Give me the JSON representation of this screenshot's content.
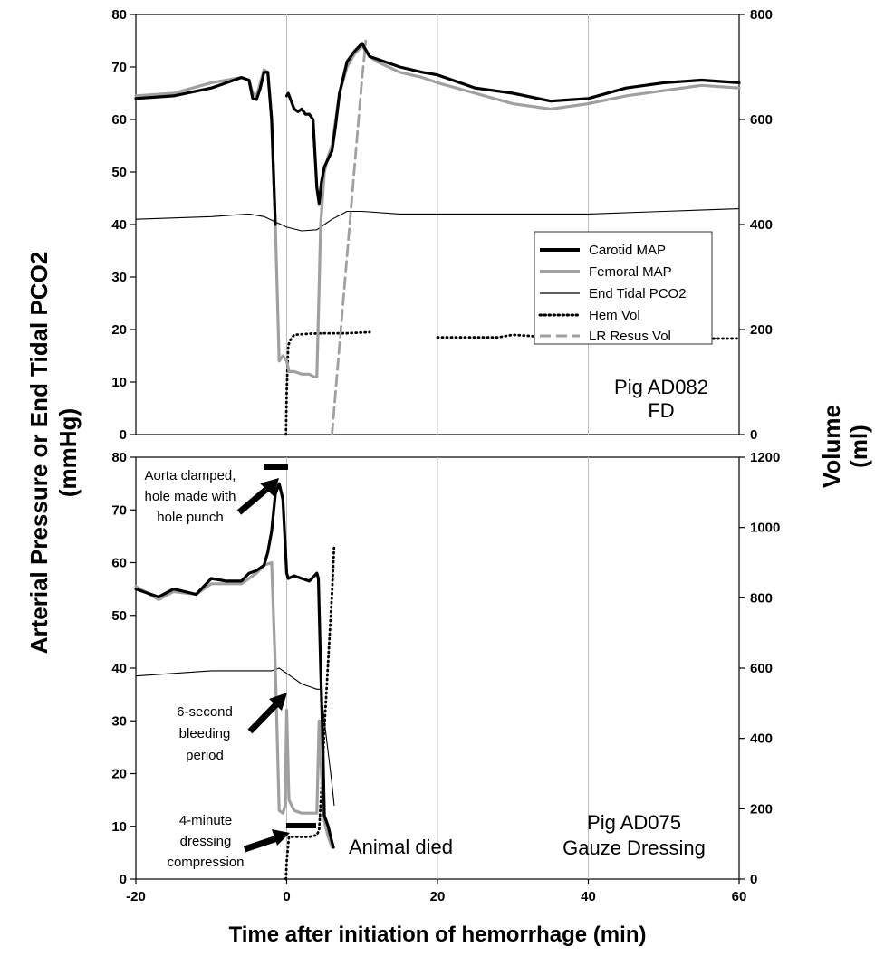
{
  "chart_data": [
    {
      "type": "line",
      "panel": "top",
      "x_axis": {
        "lim": [
          -20,
          60
        ],
        "ticks": [
          -20,
          0,
          20,
          40,
          60
        ]
      },
      "y_left": {
        "lim": [
          0,
          80
        ],
        "ticks": [
          0,
          10,
          20,
          30,
          40,
          50,
          60,
          70,
          80
        ]
      },
      "y_right": {
        "lim": [
          0,
          800
        ],
        "ticks": [
          0,
          200,
          400,
          600,
          800
        ]
      },
      "grid": "vertical at x = 0, 20, 40",
      "legend": {
        "placement": "right-middle",
        "entries": [
          "Carotid MAP",
          "Femoral MAP",
          "End Tidal PCO2",
          "Hem Vol",
          "LR Resus Vol"
        ]
      },
      "annotation": [
        "Pig AD082",
        "FD"
      ],
      "series": [
        {
          "name": "Carotid MAP",
          "axis": "left",
          "x": [
            -20,
            -15,
            -10,
            -6,
            -5,
            -4.5,
            -4,
            -3.5,
            -3,
            -2.5,
            -2,
            -1.5,
            -1.5,
            0,
            0.2,
            1,
            1.5,
            2,
            2.5,
            3,
            3.5,
            4,
            4.3,
            4.6,
            5,
            5.5,
            6,
            6.5,
            7,
            8,
            9,
            10,
            11,
            12,
            15,
            18,
            20,
            25,
            30,
            35,
            40,
            45,
            50,
            55,
            60
          ],
          "y": [
            64,
            64.5,
            66,
            68,
            67.5,
            64,
            63.8,
            66,
            69,
            69,
            60,
            40,
            null,
            64.5,
            65,
            62,
            61.5,
            62,
            61,
            61,
            60,
            47,
            44,
            48,
            51,
            52.5,
            54,
            59,
            65,
            71,
            73,
            74.5,
            72,
            71.5,
            70,
            69,
            68.5,
            66,
            65,
            63.5,
            64,
            66,
            67,
            67.5,
            67
          ]
        },
        {
          "name": "Femoral MAP",
          "axis": "left",
          "x": [
            -20,
            -15,
            -10,
            -6,
            -5,
            -4.5,
            -4,
            -3.5,
            -3,
            -2.5,
            -2,
            -1.5,
            -1,
            -0.5,
            0,
            0.3,
            0.6,
            1,
            2,
            3,
            3.6,
            4,
            4.3,
            4.5,
            5,
            5.5,
            6,
            6.5,
            7,
            8,
            9,
            10,
            11,
            12,
            15,
            18,
            20,
            25,
            30,
            35,
            40,
            45,
            50,
            55,
            60
          ],
          "y": [
            64.5,
            65,
            67,
            68,
            67.5,
            65,
            64.5,
            67,
            69.5,
            69,
            60,
            40,
            14,
            15,
            14,
            12,
            12,
            12,
            11.5,
            11.5,
            11,
            11,
            28,
            40,
            50,
            53,
            55,
            60,
            65,
            70,
            72.5,
            74,
            72,
            71,
            69,
            68,
            67,
            65,
            63,
            62,
            63,
            64.5,
            65.5,
            66.5,
            66
          ]
        },
        {
          "name": "End Tidal PCO2",
          "axis": "left",
          "x": [
            -20,
            -10,
            -5,
            -3,
            0,
            2,
            4,
            5,
            6,
            8,
            10,
            15,
            20,
            30,
            40,
            50,
            60
          ],
          "y": [
            41,
            41.5,
            42,
            41.5,
            39.5,
            38.8,
            39,
            40,
            41,
            42.5,
            42.5,
            42,
            42,
            42,
            42,
            42.5,
            43
          ]
        },
        {
          "name": "Hem Vol",
          "axis": "right",
          "x": [
            -0.1,
            0,
            0.2,
            0.5,
            1,
            3,
            5,
            8,
            11,
            15,
            20,
            28,
            30,
            40,
            50,
            60
          ],
          "y": [
            0,
            80,
            170,
            180,
            190,
            192,
            193,
            193,
            195,
            null,
            185,
            185,
            190,
            180,
            182,
            183
          ]
        },
        {
          "name": "LR Resus Vol",
          "axis": "right",
          "x": [
            6,
            7,
            8,
            9,
            10,
            10.5
          ],
          "y": [
            0,
            170,
            340,
            510,
            680,
            750
          ]
        }
      ]
    },
    {
      "type": "line",
      "panel": "bottom",
      "x_axis": {
        "lim": [
          -20,
          60
        ],
        "ticks": [
          -20,
          0,
          20,
          40,
          60
        ],
        "label": "Time after initiation of hemorrhage (min)"
      },
      "y_left": {
        "lim": [
          0,
          80
        ],
        "ticks": [
          0,
          10,
          20,
          30,
          40,
          50,
          60,
          70,
          80
        ]
      },
      "y_right": {
        "lim": [
          0,
          1200
        ],
        "ticks": [
          0,
          200,
          400,
          600,
          800,
          1000,
          1200
        ]
      },
      "grid": "vertical at x = 0, 20, 40",
      "annotation": [
        "Pig AD075",
        "Gauze Dressing"
      ],
      "notes": [
        [
          "Aorta clamped,",
          "hole made with",
          "hole punch"
        ],
        [
          "6-second",
          "bleeding",
          "period"
        ],
        [
          "4-minute",
          "dressing",
          "compression"
        ],
        [
          "Animal died"
        ]
      ],
      "series": [
        {
          "name": "Carotid MAP",
          "axis": "left",
          "x": [
            -20,
            -17,
            -15,
            -12,
            -10,
            -8,
            -6,
            -5,
            -4,
            -3,
            -2.5,
            -2,
            -1.5,
            -1,
            -0.5,
            0,
            0.2,
            1,
            2,
            3,
            4,
            4.2,
            4.5,
            4.8,
            5,
            5.5,
            6,
            6.2
          ],
          "y": [
            55,
            53.5,
            55,
            54,
            57,
            56.5,
            56.5,
            58,
            58.5,
            59.5,
            62,
            66,
            73,
            75,
            72,
            58,
            57,
            57.5,
            57,
            56.5,
            58,
            57,
            40,
            25,
            12,
            10,
            7,
            6
          ]
        },
        {
          "name": "Femoral MAP",
          "axis": "left",
          "x": [
            -20,
            -17,
            -15,
            -12,
            -10,
            -8,
            -6,
            -5,
            -4,
            -3,
            -2,
            -1.5,
            -1,
            -0.5,
            -0.2,
            0,
            0.3,
            1,
            2,
            3,
            4,
            4.3,
            4.6,
            5,
            5.5,
            6
          ],
          "y": [
            55.5,
            53,
            54.5,
            54,
            56,
            56,
            56,
            57,
            58,
            59.5,
            60,
            40,
            13,
            12.5,
            14,
            32,
            15,
            13,
            12.5,
            12.5,
            12.5,
            30,
            20,
            11,
            8,
            6
          ]
        },
        {
          "name": "End Tidal PCO2",
          "axis": "left",
          "x": [
            -20,
            -15,
            -10,
            -5,
            -2,
            -1,
            0,
            1,
            2,
            3,
            4,
            4.5,
            5,
            5.5,
            6,
            6.3
          ],
          "y": [
            38.5,
            39,
            39.5,
            39.5,
            39.5,
            40,
            39,
            38,
            37,
            36.5,
            36,
            36,
            30,
            24,
            18,
            14
          ]
        },
        {
          "name": "Hem Vol",
          "axis": "right",
          "x": [
            -0.1,
            0,
            0.3,
            1,
            2,
            3,
            4,
            4.3,
            4.6,
            5,
            5.5,
            6,
            6.3
          ],
          "y": [
            0,
            50,
            120,
            120,
            120,
            120,
            125,
            140,
            250,
            430,
            620,
            810,
            950
          ]
        }
      ]
    }
  ],
  "labels": {
    "y_left": [
      "Arterial Pressure or End Tidal PCO2",
      "(mmHg)"
    ],
    "y_right": [
      "Volume",
      "(ml)"
    ]
  },
  "style": {
    "carotid_color": "#000000",
    "femoral_color": "#a0a0a0",
    "pco2_color": "#000000",
    "hem_color": "#000000",
    "lr_color": "#a0a0a0",
    "grid_color": "#bdbdbd"
  }
}
